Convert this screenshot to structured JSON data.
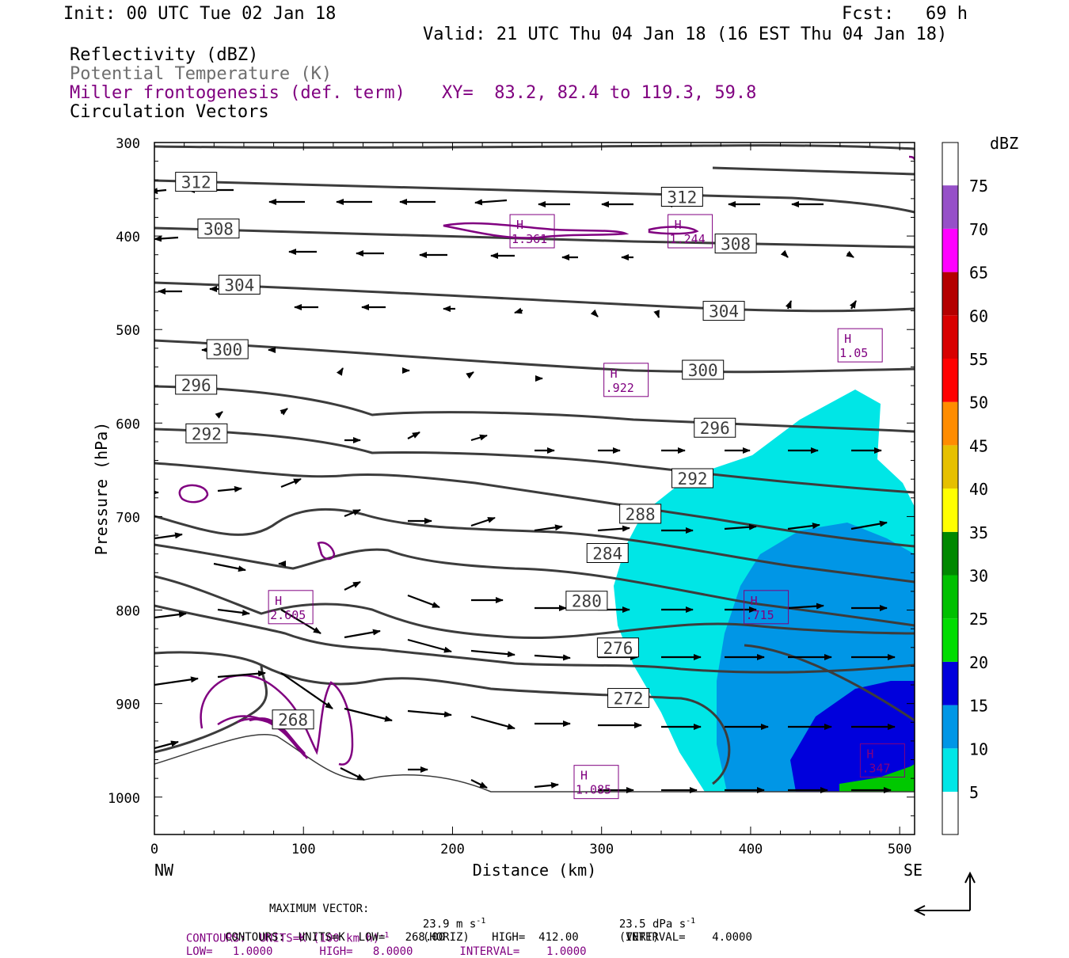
{
  "header": {
    "init": "Init: 00 UTC Tue 02 Jan 18",
    "fcst": "Fcst:   69 h",
    "valid": "Valid: 21 UTC Thu 04 Jan 18 (16 EST Thu 04 Jan 18)"
  },
  "legend_lines": {
    "reflectivity": "Reflectivity (dBZ)",
    "theta": "Potential Temperature (K)",
    "miller": "Miller frontogenesis (def. term)",
    "xy": "XY=  83.2, 82.4 to 119.3, 59.8",
    "vectors": "Circulation Vectors"
  },
  "footer": {
    "max_vector_label": "MAXIMUM VECTOR:",
    "max_vector_horiz": "23.9 m s",
    "horiz_tag": "(HORIZ)",
    "max_vector_vert": "23.5 dPa s",
    "vert_tag": "(VERT)",
    "exp": "-1",
    "contours_front": "CONTOURS:  UNITS=K (100 km h)",
    "contours_front_rest": "LOW=   1.0000       HIGH=   8.0000       INTERVAL=    1.0000",
    "contours_theta": "CONTOURS:  UNITS=K  LOW=   268.00       HIGH=  412.00       INTERVAL=    4.0000"
  },
  "colors": {
    "frontogenesis": "#800080",
    "theta": "#3c3c3c",
    "text": "#000000"
  },
  "chart_data": {
    "type": "cross-section",
    "xlabel": "Distance (km)",
    "ylabel": "Pressure (hPa)",
    "xlim": [
      0,
      510
    ],
    "ylim": [
      1040,
      300
    ],
    "x_ticks": [
      "0",
      "100",
      "200",
      "300",
      "400",
      "500"
    ],
    "y_ticks": [
      "300",
      "400",
      "500",
      "600",
      "700",
      "800",
      "900",
      "1000"
    ],
    "left_end_label": "NW",
    "right_end_label": "SE",
    "colorbar": {
      "title": "dBZ",
      "levels": [
        "5",
        "10",
        "15",
        "20",
        "25",
        "30",
        "35",
        "40",
        "45",
        "50",
        "55",
        "60",
        "65",
        "70",
        "75"
      ],
      "colors": [
        "#00e6e6",
        "#0096e6",
        "#0000dc",
        "#00dc00",
        "#00c000",
        "#008800",
        "#ffff00",
        "#e6c000",
        "#ff8c00",
        "#ff0000",
        "#d80000",
        "#b40000",
        "#ff00ff",
        "#9650c8"
      ]
    },
    "theta_labels": [
      {
        "value": "312",
        "x": 28,
        "p": 342
      },
      {
        "value": "312",
        "x": 354,
        "p": 358
      },
      {
        "value": "308",
        "x": 43,
        "p": 392
      },
      {
        "value": "308",
        "x": 390,
        "p": 408
      },
      {
        "value": "304",
        "x": 57,
        "p": 452
      },
      {
        "value": "304",
        "x": 382,
        "p": 480
      },
      {
        "value": "300",
        "x": 49,
        "p": 521
      },
      {
        "value": "300",
        "x": 368,
        "p": 543
      },
      {
        "value": "296",
        "x": 28,
        "p": 559
      },
      {
        "value": "296",
        "x": 376,
        "p": 605
      },
      {
        "value": "292",
        "x": 35,
        "p": 611
      },
      {
        "value": "292",
        "x": 361,
        "p": 659
      },
      {
        "value": "288",
        "x": 326,
        "p": 697
      },
      {
        "value": "284",
        "x": 304,
        "p": 739
      },
      {
        "value": "280",
        "x": 290,
        "p": 790
      },
      {
        "value": "276",
        "x": 311,
        "p": 840
      },
      {
        "value": "272",
        "x": 318,
        "p": 894
      },
      {
        "value": "268",
        "x": 93,
        "p": 917
      }
    ],
    "frontogenesis_maxima": [
      {
        "label": "H",
        "value": "1.361",
        "x": 246,
        "p": 394
      },
      {
        "label": "H",
        "value": "1.244",
        "x": 352,
        "p": 394
      },
      {
        "label": "H",
        "value": "1.05",
        "x": 466,
        "p": 516
      },
      {
        "label": "H",
        "value": ".922",
        "x": 309,
        "p": 553
      },
      {
        "label": "H",
        "value": "2.605",
        "x": 84,
        "p": 796
      },
      {
        "label": "H",
        "value": ".715",
        "x": 403,
        "p": 796
      },
      {
        "label": "H",
        "value": "1.085",
        "x": 289,
        "p": 983
      },
      {
        "label": "H",
        "value": ".347",
        "x": 481,
        "p": 960
      }
    ]
  }
}
